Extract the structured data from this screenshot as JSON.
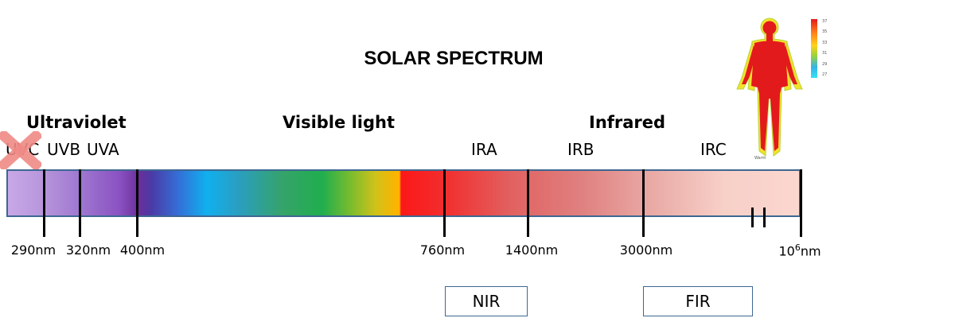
{
  "title": "SOLAR SPECTRUM",
  "categories": {
    "ultraviolet": "Ultraviolet",
    "visible": "Visible light",
    "infrared": "Infrared"
  },
  "subbands": {
    "uvc": "UVC",
    "uvb": "UVB",
    "uva": "UVA",
    "ira": "IRA",
    "irb": "IRB",
    "irc": "IRC"
  },
  "wavelengths": {
    "w290": "290nm",
    "w320": "320nm",
    "w400": "400nm",
    "w760": "760nm",
    "w1400": "1400nm",
    "w3000": "3000nm",
    "w_max_base": "10",
    "w_max_exp": "6",
    "w_max_unit": "nm"
  },
  "groups": {
    "nir": "NIR",
    "fir": "FIR"
  },
  "thermal_figure": {
    "scale_labels": [
      "37",
      "35",
      "33",
      "31",
      "29",
      "27"
    ],
    "caption": "Warm"
  },
  "colors": {
    "border": "#3d6792",
    "uvc_cross": "#f08a86",
    "body_hot": "#e31a1c"
  },
  "icons": {
    "uvc_cross": "x-cross-icon",
    "thermal_body": "thermal-human-body-icon"
  }
}
